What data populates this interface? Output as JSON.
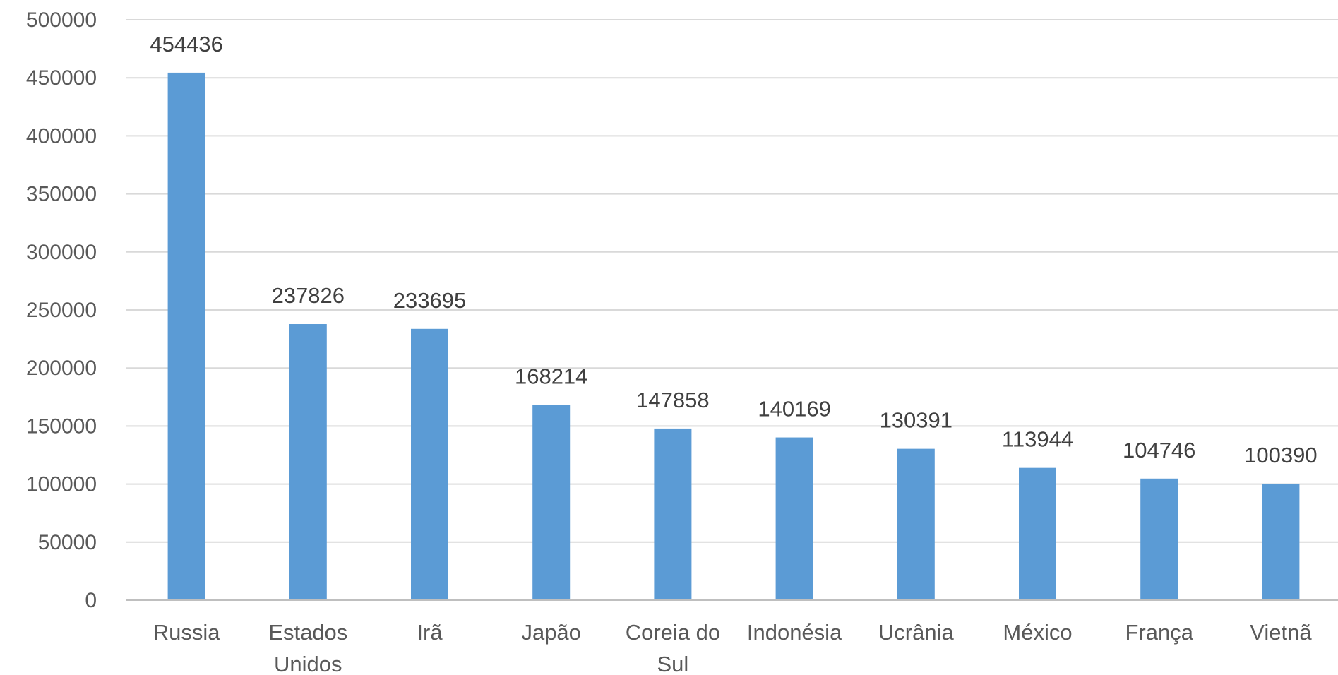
{
  "chart_data": {
    "type": "bar",
    "title": "",
    "xlabel": "",
    "ylabel": "",
    "categories": [
      [
        "Russia"
      ],
      [
        "Estados",
        "Unidos"
      ],
      [
        "Irã"
      ],
      [
        "Japão"
      ],
      [
        "Coreia do",
        "Sul"
      ],
      [
        "Indonésia"
      ],
      [
        "Ucrânia"
      ],
      [
        "México"
      ],
      [
        "França"
      ],
      [
        "Vietnã"
      ]
    ],
    "values": [
      454436,
      237826,
      233695,
      168214,
      147858,
      140169,
      130391,
      113944,
      104746,
      100390
    ],
    "data_labels": [
      "454436",
      "237826",
      "233695",
      "168214",
      "147858",
      "140169",
      "130391",
      "113944",
      "104746",
      "100390"
    ],
    "ylim": [
      0,
      500000
    ],
    "yticks": [
      0,
      50000,
      100000,
      150000,
      200000,
      250000,
      300000,
      350000,
      400000,
      450000,
      500000
    ],
    "ytick_labels": [
      "0",
      "50000",
      "100000",
      "150000",
      "200000",
      "250000",
      "300000",
      "350000",
      "400000",
      "450000",
      "500000"
    ],
    "grid": true,
    "legend": "none",
    "bar_color": "#5b9bd5"
  }
}
